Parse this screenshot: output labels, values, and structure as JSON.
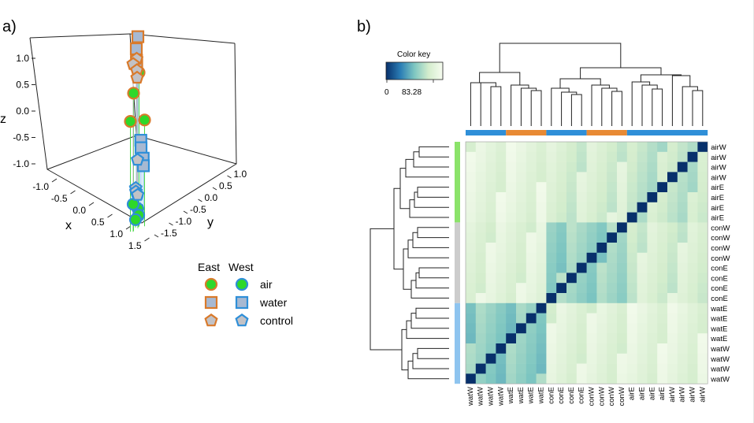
{
  "panels": {
    "a": "a)",
    "b": "b)"
  },
  "chart_data": [
    {
      "type": "scatter",
      "title": "",
      "xlabel": "x",
      "ylabel": "y",
      "zlabel": "z",
      "x_ticks": [
        "-1.0",
        "-0.5",
        "0.0",
        "0.5",
        "1.0",
        "1.5"
      ],
      "y_ticks": [
        "-1.5",
        "-1.0",
        "-0.5",
        "0.0",
        "0.5",
        "1.0"
      ],
      "z_ticks": [
        "1.0",
        "0.5",
        "0.0",
        "-0.5",
        "-1.0"
      ],
      "legend": {
        "headers": [
          "East",
          "West"
        ],
        "rows": [
          {
            "label": "air",
            "shape": "circle"
          },
          {
            "label": "water",
            "shape": "square"
          },
          {
            "label": "control",
            "shape": "pentagon"
          }
        ],
        "east_edge": "#d97a2b",
        "west_edge": "#2f8fd8",
        "fills": {
          "air": "#2ed82a",
          "water": "#a7b9d2",
          "control": "#c2c2c6"
        }
      },
      "series": [
        {
          "name": "air East",
          "points": [
            [
              -0.9,
              -0.6,
              0.2
            ],
            [
              -0.7,
              -0.7,
              0.6
            ],
            [
              -0.5,
              -0.6,
              0.25
            ],
            [
              -0.3,
              -0.2,
              0.8
            ]
          ]
        },
        {
          "name": "air West",
          "points": [
            [
              -0.6,
              -0.5,
              -0.9
            ],
            [
              -0.4,
              -0.3,
              -1.0
            ],
            [
              -0.2,
              -0.2,
              -1.05
            ],
            [
              -0.8,
              -0.8,
              -0.8
            ]
          ]
        },
        {
          "name": "water East",
          "points": [
            [
              -0.1,
              -0.05,
              1.25
            ],
            [
              0.0,
              0.0,
              1.1
            ],
            [
              0.05,
              0.05,
              0.95
            ],
            [
              0.1,
              0.1,
              0.9
            ]
          ]
        },
        {
          "name": "water West",
          "points": [
            [
              0.15,
              0.25,
              -0.1
            ],
            [
              0.2,
              0.3,
              -0.2
            ],
            [
              0.25,
              0.4,
              -0.35
            ],
            [
              0.3,
              0.45,
              -0.45
            ]
          ]
        },
        {
          "name": "control East",
          "points": [
            [
              1.1,
              1.0,
              0.9
            ],
            [
              1.2,
              1.0,
              0.85
            ],
            [
              1.15,
              1.05,
              0.75
            ],
            [
              1.2,
              1.1,
              0.65
            ]
          ]
        },
        {
          "name": "control West",
          "points": [
            [
              1.3,
              1.2,
              -0.4
            ],
            [
              1.35,
              1.2,
              -0.75
            ],
            [
              1.4,
              1.25,
              -0.8
            ],
            [
              1.35,
              1.25,
              -0.85
            ]
          ]
        }
      ]
    },
    {
      "type": "heatmap",
      "color_key": {
        "title": "Color key",
        "ticks": [
          "0",
          "83.28"
        ],
        "range": [
          0,
          100
        ],
        "max_label": 83.28
      },
      "colors": [
        "#08306b",
        "#2a7db5",
        "#7ec6c1",
        "#d4edcd",
        "#f7fcf0"
      ],
      "row_labels": [
        "airW",
        "airW",
        "airW",
        "airW",
        "airE",
        "airE",
        "airE",
        "airE",
        "conW",
        "conW",
        "conW",
        "conW",
        "conE",
        "conE",
        "conE",
        "conE",
        "watE",
        "watE",
        "watE",
        "watE",
        "watW",
        "watW",
        "watW",
        "watW"
      ],
      "col_labels": [
        "watW",
        "watW",
        "watW",
        "watW",
        "watE",
        "watE",
        "watE",
        "watE",
        "conE",
        "conE",
        "conE",
        "conE",
        "conW",
        "conW",
        "conW",
        "conW",
        "airE",
        "airE",
        "airE",
        "airE",
        "airW",
        "airW",
        "airW",
        "airW"
      ],
      "row_group_colors": [
        "#8be36a",
        "#cccccc",
        "#8ec4ef"
      ],
      "row_group_sizes": [
        8,
        8,
        8
      ],
      "col_group_colors": [
        "#2f8fd8",
        "#e88a34",
        "#2f8fd8",
        "#e88a34",
        "#2f8fd8"
      ],
      "col_group_sizes": [
        4,
        4,
        4,
        4,
        8
      ],
      "block_means": {
        "air_air": 70,
        "con_con": 58,
        "wat_wat": 55,
        "air_con": 78,
        "air_wat": 86,
        "con_wat": 84
      }
    }
  ]
}
